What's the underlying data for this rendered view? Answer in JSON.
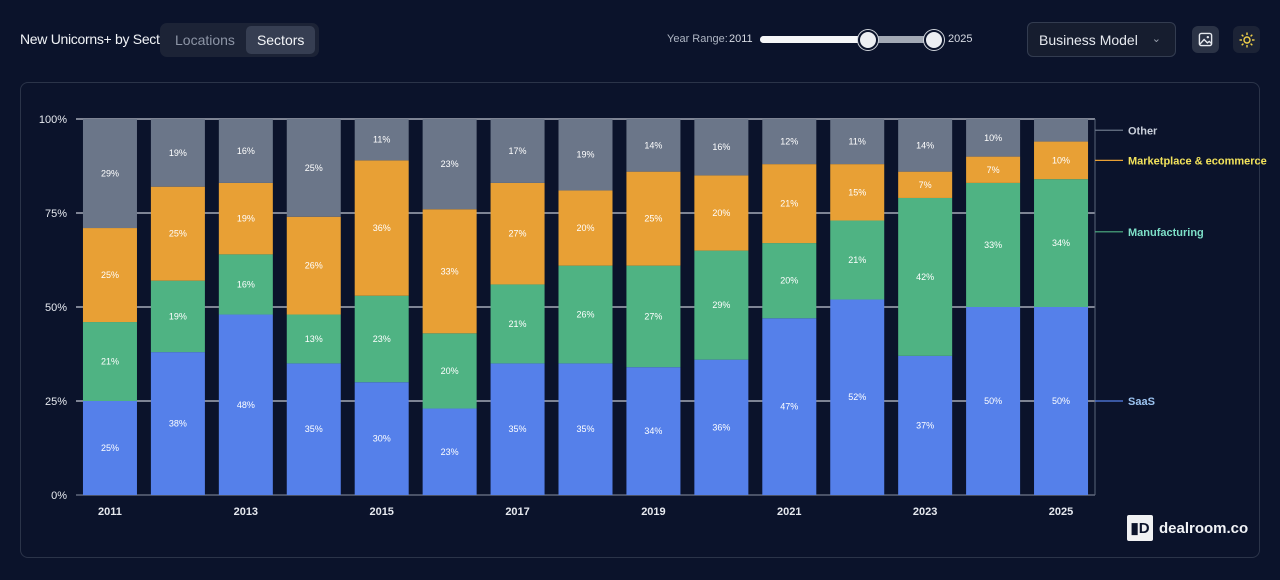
{
  "header": {
    "title": "New Unicorns+ by Sector",
    "tabs": [
      {
        "label": "Locations",
        "active": false
      },
      {
        "label": "Sectors",
        "active": true
      }
    ],
    "year_range": {
      "label": "Year Range:",
      "min": "2011",
      "max": "2025",
      "selected_start": 2011,
      "selected_end": 2025,
      "slider_min": 2011,
      "slider_max": 2025,
      "handle_position_fraction": 0.62
    },
    "dropdown": {
      "value": "Business Model",
      "icon": "chevron-down-icon"
    },
    "buttons": [
      {
        "icon": "image-icon"
      },
      {
        "icon": "sun-icon"
      }
    ]
  },
  "logo": {
    "text": "dealroom.co"
  },
  "colors": {
    "saas": "#5580ea",
    "manufacturing": "#4fb383",
    "marketplace": "#e8a035",
    "other": "#6b7689",
    "background": "#0b132b"
  },
  "chart_data": {
    "type": "bar",
    "stacked": true,
    "percent": true,
    "categories": [
      "2011",
      "2012",
      "2013",
      "2014",
      "2015",
      "2016",
      "2017",
      "2018",
      "2019",
      "2020",
      "2021",
      "2022",
      "2023",
      "2024",
      "2025"
    ],
    "x_tick_labels": [
      "2011",
      "2013",
      "2015",
      "2017",
      "2019",
      "2021",
      "2023",
      "2025"
    ],
    "y_tick_labels": [
      "0%",
      "25%",
      "50%",
      "75%",
      "100%"
    ],
    "ylim": [
      0,
      100
    ],
    "grid": true,
    "legend_placement": "right",
    "series": [
      {
        "name": "SaaS",
        "key": "saas",
        "values": [
          25,
          38,
          48,
          35,
          30,
          23,
          35,
          35,
          34,
          36,
          47,
          52,
          37,
          50,
          50
        ]
      },
      {
        "name": "Manufacturing",
        "key": "manufacturing",
        "values": [
          21,
          19,
          16,
          13,
          23,
          20,
          21,
          26,
          27,
          29,
          20,
          21,
          42,
          33,
          34
        ]
      },
      {
        "name": "Marketplace & ecommerce",
        "key": "marketplace",
        "values": [
          25,
          25,
          19,
          26,
          36,
          33,
          27,
          20,
          25,
          20,
          21,
          15,
          7,
          7,
          10
        ]
      },
      {
        "name": "Other",
        "key": "other",
        "values": [
          29,
          19,
          16,
          25,
          11,
          23,
          17,
          19,
          14,
          16,
          12,
          11,
          14,
          10,
          null
        ]
      }
    ],
    "legend_label_colors": {
      "saas": "#9cc3f0",
      "manufacturing": "#7ee0c8",
      "marketplace": "#f3e35c",
      "other": "#c9cfda"
    }
  }
}
